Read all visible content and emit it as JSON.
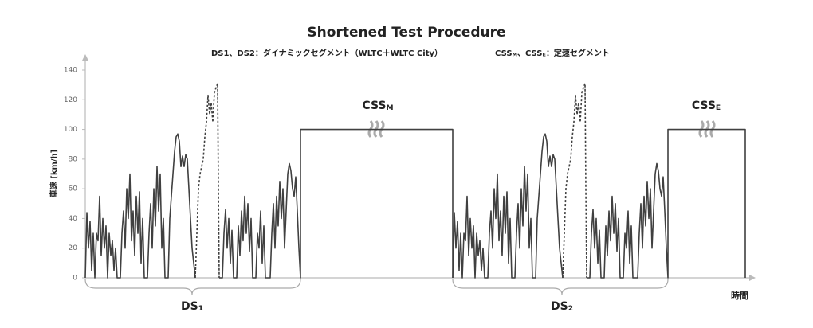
{
  "chart_data": {
    "type": "line",
    "title": "Shortened Test Procedure",
    "subtitle_left": "DS1、DS2：ダイナミックセグメント（WLTC＋WLTC City）",
    "subtitle_right": [
      "CSS",
      "M",
      "、CSS",
      "E",
      "：定速セグメント"
    ],
    "ylabel": "車速 [km/h]",
    "xlabel": "時間",
    "annotations": {
      "css_m": [
        "CSS",
        "M"
      ],
      "css_e": [
        "CSS",
        "E"
      ],
      "ds1": [
        "DS",
        "1"
      ],
      "ds2": [
        "DS",
        "2"
      ]
    },
    "xlim": [
      0,
      840
    ],
    "ylim": [
      0,
      140
    ],
    "yticks": [
      0,
      20,
      40,
      60,
      80,
      100,
      120,
      140
    ],
    "series": [
      {
        "color": "#404040",
        "dash": false,
        "x": [
          0,
          2,
          4,
          6,
          8,
          10,
          12,
          14,
          16,
          18,
          20,
          22,
          24,
          26,
          28,
          30,
          32,
          34,
          36,
          38,
          40,
          44,
          46,
          48,
          50,
          52,
          54,
          56,
          58,
          60,
          62,
          64,
          66,
          68,
          70,
          72,
          74,
          78,
          80,
          82,
          84,
          86,
          88,
          90,
          92,
          94,
          96,
          98,
          100,
          104,
          106,
          108,
          110,
          112,
          114,
          116,
          118,
          120,
          122,
          124,
          126,
          128,
          130,
          132,
          134,
          138
        ],
        "values": [
          0,
          44,
          20,
          38,
          5,
          30,
          0,
          30,
          25,
          55,
          15,
          40,
          20,
          35,
          0,
          30,
          15,
          25,
          5,
          20,
          0,
          0,
          30,
          45,
          20,
          60,
          40,
          70,
          25,
          45,
          15,
          55,
          30,
          58,
          10,
          40,
          0,
          0,
          30,
          50,
          20,
          60,
          35,
          75,
          45,
          70,
          20,
          40,
          0,
          0,
          40,
          55,
          70,
          85,
          95,
          97,
          92,
          75,
          82,
          75,
          83,
          80,
          60,
          40,
          20,
          0
        ]
      },
      {
        "color": "#404040",
        "dash": true,
        "x": [
          138,
          140,
          142,
          144,
          146,
          148,
          150,
          152,
          154,
          156,
          158,
          160,
          162,
          164,
          166,
          167,
          168
        ],
        "values": [
          0,
          30,
          60,
          70,
          75,
          80,
          95,
          105,
          123,
          110,
          118,
          105,
          125,
          128,
          131,
          60,
          0
        ]
      },
      {
        "color": "#404040",
        "dash": false,
        "x": [
          168,
          172,
          174,
          176,
          178,
          180,
          182,
          184,
          186,
          190,
          192,
          194,
          196,
          198,
          200,
          202,
          204,
          206,
          208,
          210,
          214,
          216,
          218,
          220,
          222,
          224,
          226,
          232,
          234,
          236,
          238,
          240,
          242,
          244,
          246,
          248,
          250,
          252,
          254,
          256,
          258,
          260,
          262,
          264,
          266,
          268,
          270,
          270,
          461,
          461
        ],
        "values": [
          0,
          0,
          30,
          46,
          20,
          40,
          10,
          32,
          0,
          0,
          35,
          15,
          45,
          25,
          55,
          30,
          50,
          18,
          40,
          0,
          0,
          30,
          20,
          45,
          10,
          35,
          0,
          0,
          30,
          50,
          20,
          55,
          35,
          65,
          40,
          60,
          20,
          45,
          70,
          77,
          72,
          60,
          55,
          68,
          45,
          20,
          0,
          100,
          100,
          0
        ]
      },
      {
        "color": "#404040",
        "dash": false,
        "x": [
          461,
          463,
          465,
          467,
          469,
          471,
          473,
          475,
          477,
          479,
          481,
          483,
          485,
          487,
          489,
          491,
          493,
          495,
          497,
          499,
          501,
          505,
          507,
          509,
          511,
          513,
          515,
          517,
          519,
          521,
          523,
          525,
          527,
          529,
          531,
          533,
          535,
          539,
          541,
          543,
          545,
          547,
          549,
          551,
          553,
          555,
          557,
          559,
          561,
          565,
          567,
          569,
          571,
          573,
          575,
          577,
          579,
          581,
          583,
          585,
          587,
          589,
          591,
          593,
          595,
          599
        ],
        "values": [
          0,
          44,
          20,
          38,
          5,
          30,
          0,
          30,
          25,
          55,
          15,
          40,
          20,
          35,
          0,
          30,
          15,
          25,
          5,
          20,
          0,
          0,
          30,
          45,
          20,
          60,
          40,
          70,
          25,
          45,
          15,
          55,
          30,
          58,
          10,
          40,
          0,
          0,
          30,
          50,
          20,
          60,
          35,
          75,
          45,
          70,
          20,
          40,
          0,
          0,
          40,
          55,
          70,
          85,
          95,
          97,
          92,
          75,
          82,
          75,
          83,
          80,
          60,
          40,
          20,
          0
        ]
      },
      {
        "color": "#404040",
        "dash": true,
        "x": [
          599,
          601,
          603,
          605,
          607,
          609,
          611,
          613,
          615,
          617,
          619,
          621,
          623,
          625,
          627,
          628,
          629
        ],
        "values": [
          0,
          30,
          60,
          70,
          75,
          80,
          95,
          105,
          123,
          110,
          118,
          105,
          125,
          128,
          131,
          60,
          0
        ]
      },
      {
        "color": "#404040",
        "dash": false,
        "x": [
          629,
          633,
          635,
          637,
          639,
          641,
          643,
          645,
          647,
          651,
          653,
          655,
          657,
          659,
          661,
          663,
          665,
          667,
          669,
          671,
          675,
          677,
          679,
          681,
          683,
          685,
          687,
          693,
          695,
          697,
          699,
          701,
          703,
          705,
          707,
          709,
          711,
          713,
          715,
          717,
          719,
          721,
          723,
          725,
          727,
          729,
          731,
          731,
          828,
          828
        ],
        "values": [
          0,
          0,
          30,
          46,
          20,
          40,
          10,
          32,
          0,
          0,
          35,
          15,
          45,
          25,
          55,
          30,
          50,
          18,
          40,
          0,
          0,
          30,
          20,
          45,
          10,
          35,
          0,
          0,
          30,
          50,
          20,
          55,
          35,
          65,
          40,
          60,
          20,
          45,
          70,
          77,
          72,
          60,
          55,
          68,
          45,
          20,
          0,
          100,
          100,
          0
        ]
      }
    ]
  }
}
